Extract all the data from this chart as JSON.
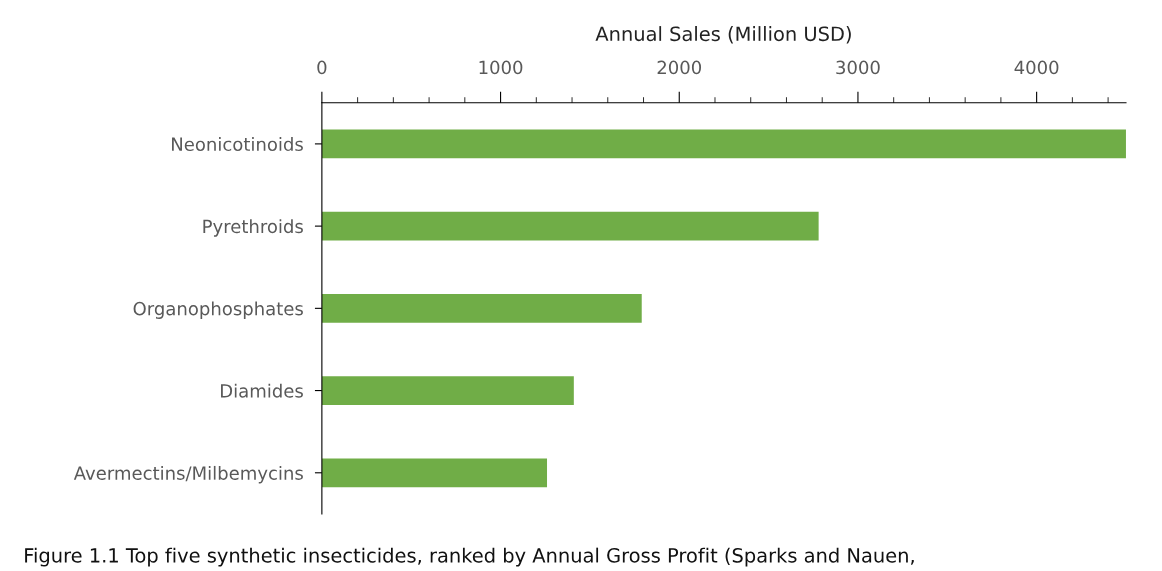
{
  "chart_data": {
    "type": "bar",
    "orientation": "horizontal",
    "xlabel": "Annual Sales (Million USD)",
    "categories": [
      "Neonicotinoids",
      "Pyrethroids",
      "Organophosphates",
      "Diamides",
      "Avermectins/Milbemycins"
    ],
    "values": [
      4500,
      2780,
      1790,
      1410,
      1260
    ],
    "color": "#70ad47",
    "xlim": [
      0,
      4500
    ],
    "xticks": [
      0,
      1000,
      2000,
      3000,
      4000
    ],
    "grid": false,
    "legend": false,
    "annotations": [
      "Figure 1.1 Top five synthetic insecticides, ranked by Annual Gross Profit (Sparks and Nauen,"
    ]
  }
}
